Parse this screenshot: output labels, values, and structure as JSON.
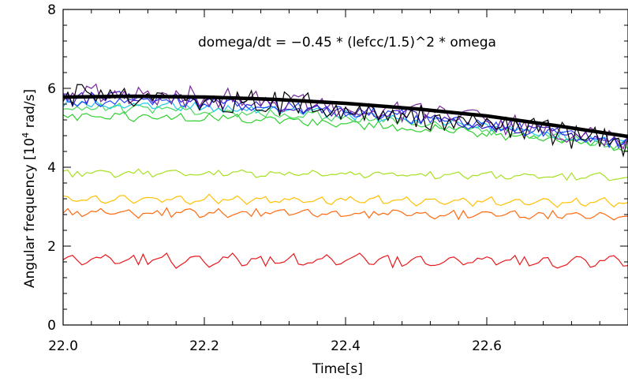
{
  "chart_data": {
    "type": "line",
    "xlabel": "Time[s]",
    "ylabel_prefix": "Angular frequency [10",
    "ylabel_sup": "4",
    "ylabel_suffix": " rad/s]",
    "annotation": "domega/dt = −0.45 * (lefcc/1.5)^2 * omega",
    "xlim": [
      22.0,
      22.8
    ],
    "ylim": [
      0,
      8
    ],
    "x_ticks": [
      22.0,
      22.2,
      22.4,
      22.6
    ],
    "x_tick_labels": [
      "22.0",
      "22.2",
      "22.4",
      "22.6"
    ],
    "y_ticks": [
      0,
      2,
      4,
      6,
      8
    ],
    "y_tick_labels": [
      "0",
      "2",
      "4",
      "6",
      "8"
    ],
    "grid": false,
    "model_curve": {
      "x": [
        22.0,
        22.1,
        22.2,
        22.3,
        22.4,
        22.5,
        22.6,
        22.7,
        22.8
      ],
      "y": [
        5.78,
        5.8,
        5.78,
        5.72,
        5.62,
        5.48,
        5.3,
        5.05,
        4.78
      ],
      "color": "#000000"
    },
    "series": [
      {
        "color": "#e8181c",
        "base": 1.65,
        "amp": 0.32,
        "period": 0.045,
        "noise": 0.05,
        "trend": -0.05,
        "seed": 11
      },
      {
        "color": "#ff6a10",
        "base": 2.85,
        "amp": 0.2,
        "period": 0.042,
        "noise": 0.05,
        "trend": -0.1,
        "seed": 12
      },
      {
        "color": "#ffc000",
        "base": 3.2,
        "amp": 0.2,
        "period": 0.04,
        "noise": 0.05,
        "trend": -0.1,
        "seed": 13
      },
      {
        "color": "#a6e020",
        "base": 3.85,
        "amp": 0.15,
        "period": 0.05,
        "noise": 0.05,
        "trend": -0.1,
        "seed": 14
      },
      {
        "color": "#30d030",
        "base": 5.3,
        "amp": 0.08,
        "period": 0.04,
        "noise": 0.1,
        "trend": -0.85,
        "seed": 15
      },
      {
        "color": "#4cd85c",
        "base": 5.5,
        "amp": 0.06,
        "period": 0.04,
        "noise": 0.12,
        "trend": -1.0,
        "seed": 16
      },
      {
        "color": "#20c8e8",
        "base": 5.6,
        "amp": 0.06,
        "period": 0.04,
        "noise": 0.12,
        "trend": -1.05,
        "seed": 17
      },
      {
        "color": "#2040ff",
        "base": 5.7,
        "amp": 0.06,
        "period": 0.04,
        "noise": 0.15,
        "trend": -1.15,
        "seed": 18
      },
      {
        "color": "#3c1cc8",
        "base": 5.75,
        "amp": 0.06,
        "period": 0.04,
        "noise": 0.18,
        "trend": -1.2,
        "seed": 19
      },
      {
        "color": "#7a2a9a",
        "base": 5.85,
        "amp": 0.05,
        "period": 0.04,
        "noise": 0.28,
        "trend": -1.3,
        "seed": 20
      },
      {
        "color": "#000000",
        "base": 5.8,
        "amp": 0.05,
        "period": 0.04,
        "noise": 0.32,
        "trend": -1.3,
        "seed": 21
      }
    ]
  }
}
